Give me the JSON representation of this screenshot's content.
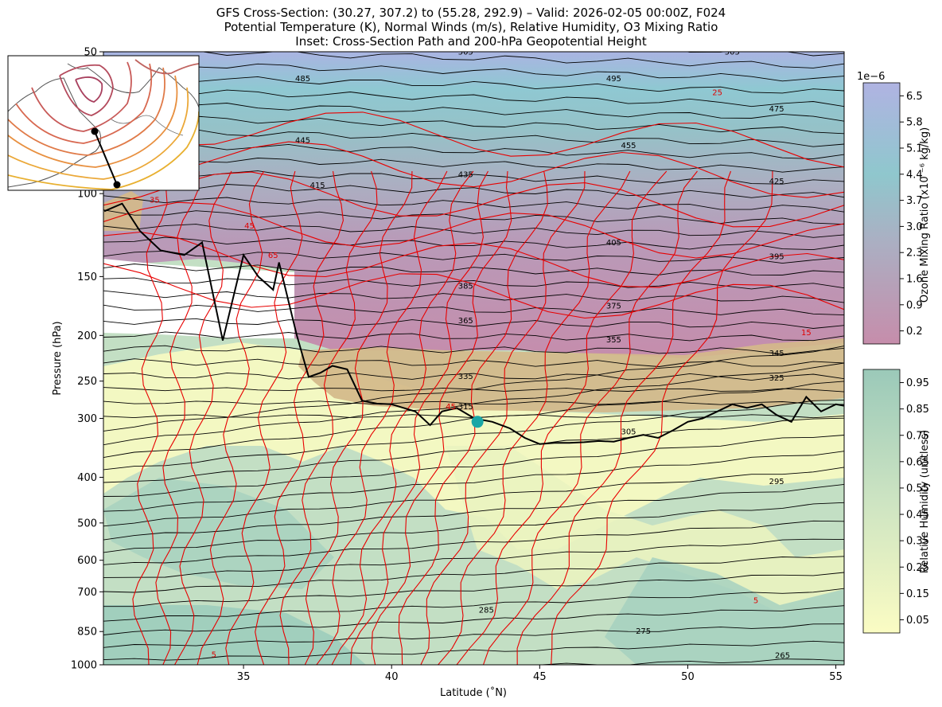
{
  "figure": {
    "title_lines": [
      "GFS Cross-Section: (30.27, 307.2) to (55.28, 292.9) – Valid: 2026-02-05 00:00Z, F024",
      "Potential Temperature (K), Normal Winds (m/s), Relative Humidity, O3 Mixing Ratio",
      "Inset: Cross-Section Path and 200-hPa Geopotential Height"
    ]
  },
  "chart_data": {
    "type": "cross-section",
    "xlabel": "Latitude (˚N)",
    "ylabel": "Pressure (hPa)",
    "xlim": [
      30.27,
      55.28
    ],
    "ylim": [
      1000,
      50
    ],
    "y_scale": "log",
    "x_ticks": [
      35,
      40,
      45,
      50,
      55
    ],
    "y_ticks": [
      50,
      100,
      150,
      200,
      250,
      300,
      400,
      500,
      600,
      700,
      850,
      1000
    ],
    "theta_labels": [
      {
        "value": 505,
        "lat": 42.5,
        "p": 50
      },
      {
        "value": 505,
        "lat": 51.5,
        "p": 50
      },
      {
        "value": 485,
        "lat": 37.0,
        "p": 57
      },
      {
        "value": 495,
        "lat": 47.5,
        "p": 57
      },
      {
        "value": 475,
        "lat": 53.0,
        "p": 66
      },
      {
        "value": 445,
        "lat": 37.0,
        "p": 77
      },
      {
        "value": 455,
        "lat": 48.0,
        "p": 79
      },
      {
        "value": 435,
        "lat": 42.5,
        "p": 91
      },
      {
        "value": 425,
        "lat": 53.0,
        "p": 94
      },
      {
        "value": 415,
        "lat": 37.5,
        "p": 96
      },
      {
        "value": 405,
        "lat": 47.5,
        "p": 127
      },
      {
        "value": 395,
        "lat": 53.0,
        "p": 136
      },
      {
        "value": 385,
        "lat": 42.5,
        "p": 157
      },
      {
        "value": 375,
        "lat": 47.5,
        "p": 173
      },
      {
        "value": 365,
        "lat": 42.5,
        "p": 186
      },
      {
        "value": 355,
        "lat": 47.5,
        "p": 204
      },
      {
        "value": 345,
        "lat": 53.0,
        "p": 218
      },
      {
        "value": 335,
        "lat": 42.5,
        "p": 244
      },
      {
        "value": 325,
        "lat": 53.0,
        "p": 246
      },
      {
        "value": 315,
        "lat": 42.5,
        "p": 283
      },
      {
        "value": 305,
        "lat": 48.0,
        "p": 320
      },
      {
        "value": 295,
        "lat": 53.0,
        "p": 408
      },
      {
        "value": 285,
        "lat": 43.2,
        "p": 765
      },
      {
        "value": 275,
        "lat": 48.5,
        "p": 848
      },
      {
        "value": 265,
        "lat": 53.2,
        "p": 955
      }
    ],
    "wind_labels": [
      {
        "value": 25,
        "lat": 32.0,
        "p": 75
      },
      {
        "value": 25,
        "lat": 51.0,
        "p": 61
      },
      {
        "value": 35,
        "lat": 32.0,
        "p": 103
      },
      {
        "value": 45,
        "lat": 35.2,
        "p": 117
      },
      {
        "value": 65,
        "lat": 36.0,
        "p": 135
      },
      {
        "value": 15,
        "lat": 54.0,
        "p": 197
      },
      {
        "value": 45,
        "lat": 42.0,
        "p": 283
      },
      {
        "value": 5,
        "lat": 52.3,
        "p": 729
      },
      {
        "value": 5,
        "lat": 34.0,
        "p": 950
      }
    ],
    "tropopause": {
      "lat": [
        30.3,
        30.9,
        31.5,
        32.2,
        33.0,
        33.6,
        34.3,
        35.0,
        35.5,
        36.0,
        36.2,
        36.8,
        37.2,
        37.6,
        38.0,
        38.5,
        39.0,
        39.5,
        40.0,
        40.8,
        41.3,
        41.7,
        42.2,
        42.8,
        43.4,
        44.0,
        44.5,
        45.0,
        45.5,
        46.0,
        46.5,
        47.0,
        47.5,
        48.0,
        48.5,
        49.0,
        49.5,
        50.0,
        50.5,
        51.0,
        51.5,
        52.0,
        52.5,
        53.0,
        53.5,
        54.0,
        54.5,
        55.0,
        55.28
      ],
      "p": [
        109,
        105,
        120,
        132,
        135,
        127,
        205,
        135,
        150,
        160,
        140,
        200,
        245,
        240,
        232,
        236,
        275,
        279,
        280,
        290,
        310,
        290,
        285,
        300,
        305,
        315,
        330,
        340,
        338,
        338,
        337,
        335,
        336,
        330,
        325,
        330,
        318,
        305,
        300,
        290,
        280,
        285,
        280,
        295,
        305,
        270,
        290,
        280,
        282
      ]
    },
    "marker": {
      "lat": 42.9,
      "p": 305,
      "color": "#1aa6a6"
    },
    "colorbars": [
      {
        "label": "Ozone Mixing Ratio (x10 ⁻⁶ kg/kg)",
        "exponent": "1e−6",
        "ticks": [
          "6.5",
          "5.8",
          "5.1",
          "4.4",
          "3.7",
          "3.0",
          "2.3",
          "1.6",
          "0.9",
          "0.2"
        ],
        "colors": [
          "#b0b3e0",
          "#aab8e0",
          "#9cc0d8",
          "#92c6d0",
          "#8fc6c6",
          "#a7bfc4",
          "#b5a8bf",
          "#b997b7",
          "#c48fb0",
          "#c58fac"
        ]
      },
      {
        "label": "Relative Humidity (unitless)",
        "ticks": [
          "0.95",
          "0.85",
          "0.75",
          "0.65",
          "0.55",
          "0.45",
          "0.35",
          "0.25",
          "0.15",
          "0.05"
        ],
        "colors": [
          "#9ecbbb",
          "#a6d0bf",
          "#b3d7c3",
          "#c1ddc3",
          "#cde4c2",
          "#d8eac0",
          "#e2eebf",
          "#ebf2bf",
          "#f3f6c0",
          "#fafbc2"
        ]
      }
    ],
    "inset": {
      "path": [
        {
          "lon": 307.2,
          "lat": 30.27
        },
        {
          "lon": 292.9,
          "lat": 55.28
        }
      ]
    }
  }
}
